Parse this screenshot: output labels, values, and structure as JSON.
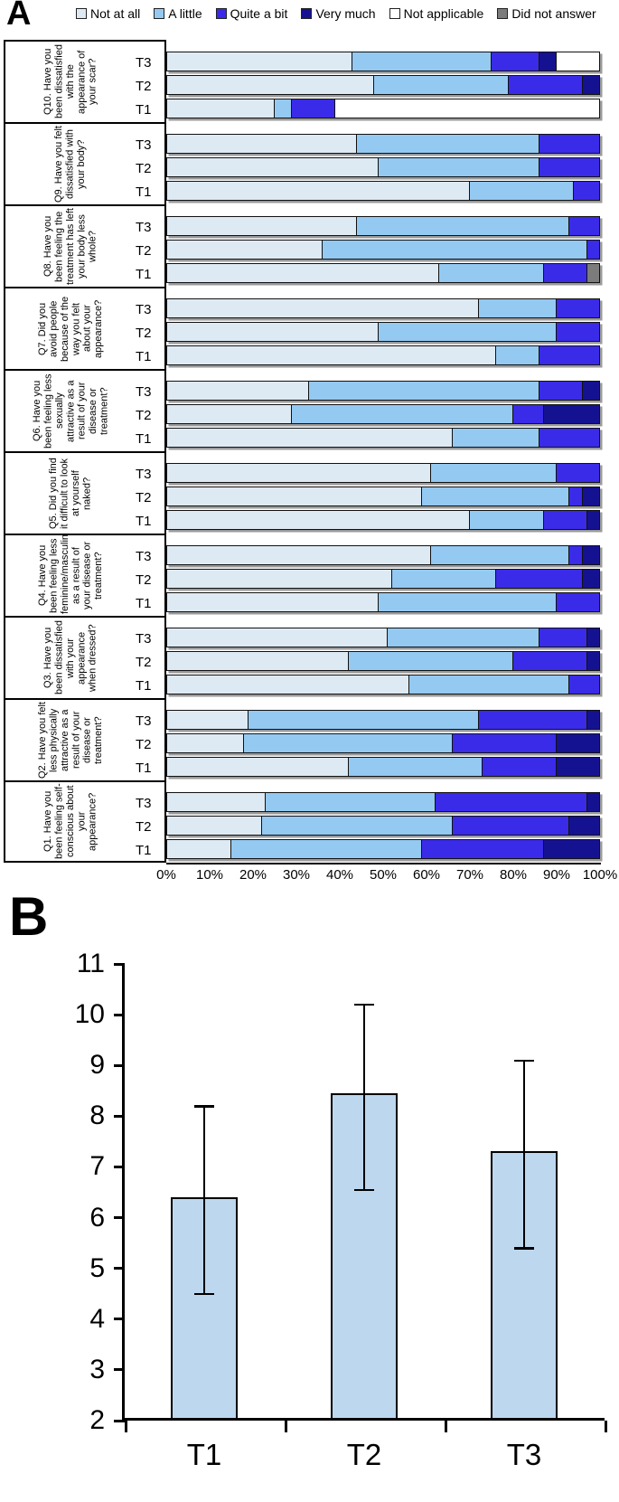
{
  "panel_a": {
    "letter": "A"
  },
  "panel_b": {
    "letter": "B"
  },
  "chart_data": [
    {
      "id": "A",
      "type": "bar",
      "variant": "horizontal-stacked-100-percent",
      "legend_position": "top",
      "categories": [
        "Not at all",
        "A little",
        "Quite a bit",
        "Very much",
        "Not applicable",
        "Did not answer"
      ],
      "colors": [
        "#DEEAF3",
        "#94C9F2",
        "#3A2BE8",
        "#151291",
        "#FFFFFF",
        "#7C7C7C"
      ],
      "xlim": [
        0,
        100
      ],
      "x_tick_labels": [
        "0%",
        "10%",
        "20%",
        "30%",
        "40%",
        "50%",
        "60%",
        "70%",
        "80%",
        "90%",
        "100%"
      ],
      "questions": [
        {
          "id": "Q10",
          "text": "Q10. Have you been dissatisfied with the appearance of your scar?",
          "rows": [
            {
              "label": "T3",
              "values": [
                43,
                32,
                11,
                4,
                10,
                0
              ]
            },
            {
              "label": "T2",
              "values": [
                48,
                31,
                17,
                4,
                0,
                0
              ]
            },
            {
              "label": "T1",
              "values": [
                25,
                4,
                10,
                0,
                61,
                0
              ]
            }
          ]
        },
        {
          "id": "Q9",
          "text": "Q9. Have you felt dissatisfied with your body?",
          "rows": [
            {
              "label": "T3",
              "values": [
                44,
                42,
                14,
                0,
                0,
                0
              ]
            },
            {
              "label": "T2",
              "values": [
                49,
                37,
                14,
                0,
                0,
                0
              ]
            },
            {
              "label": "T1",
              "values": [
                70,
                24,
                6,
                0,
                0,
                0
              ]
            }
          ]
        },
        {
          "id": "Q8",
          "text": "Q8. Have you been feeling the treatment has left your body less whole?",
          "rows": [
            {
              "label": "T3",
              "values": [
                44,
                49,
                7,
                0,
                0,
                0
              ]
            },
            {
              "label": "T2",
              "values": [
                36,
                61,
                3,
                0,
                0,
                0
              ]
            },
            {
              "label": "T1",
              "values": [
                63,
                24,
                10,
                0,
                0,
                3
              ]
            }
          ]
        },
        {
          "id": "Q7",
          "text": "Q7. Did you avoid people because of the way you felt about your appearance?",
          "rows": [
            {
              "label": "T3",
              "values": [
                72,
                18,
                10,
                0,
                0,
                0
              ]
            },
            {
              "label": "T2",
              "values": [
                49,
                41,
                10,
                0,
                0,
                0
              ]
            },
            {
              "label": "T1",
              "values": [
                76,
                10,
                14,
                0,
                0,
                0
              ]
            }
          ]
        },
        {
          "id": "Q6",
          "text": "Q6. Have you been feeling less sexually attractive as a result of your disease or treatment?",
          "rows": [
            {
              "label": "T3",
              "values": [
                33,
                53,
                10,
                4,
                0,
                0
              ]
            },
            {
              "label": "T2",
              "values": [
                29,
                51,
                7,
                13,
                0,
                0
              ]
            },
            {
              "label": "T1",
              "values": [
                66,
                20,
                14,
                0,
                0,
                0
              ]
            }
          ]
        },
        {
          "id": "Q5",
          "text": "Q5. Did you find it difficult to look at yourself naked?",
          "rows": [
            {
              "label": "T3",
              "values": [
                61,
                29,
                10,
                0,
                0,
                0
              ]
            },
            {
              "label": "T2",
              "values": [
                59,
                34,
                3,
                4,
                0,
                0
              ]
            },
            {
              "label": "T1",
              "values": [
                70,
                17,
                10,
                3,
                0,
                0
              ]
            }
          ]
        },
        {
          "id": "Q4",
          "text": "Q4. Have you been feeling less feminine/masculine as a result of your disease or treatment?",
          "rows": [
            {
              "label": "T3",
              "values": [
                61,
                32,
                3,
                4,
                0,
                0
              ]
            },
            {
              "label": "T2",
              "values": [
                52,
                24,
                20,
                4,
                0,
                0
              ]
            },
            {
              "label": "T1",
              "values": [
                49,
                41,
                10,
                0,
                0,
                0
              ]
            }
          ]
        },
        {
          "id": "Q3",
          "text": "Q3. Have you been dissatisfied with your appearance when dressed?",
          "rows": [
            {
              "label": "T3",
              "values": [
                51,
                35,
                11,
                3,
                0,
                0
              ]
            },
            {
              "label": "T2",
              "values": [
                42,
                38,
                17,
                3,
                0,
                0
              ]
            },
            {
              "label": "T1",
              "values": [
                56,
                37,
                7,
                0,
                0,
                0
              ]
            }
          ]
        },
        {
          "id": "Q2",
          "text": "Q2. Have you felt less physically attractive as a result of your disease or treatment?",
          "rows": [
            {
              "label": "T3",
              "values": [
                19,
                53,
                25,
                3,
                0,
                0
              ]
            },
            {
              "label": "T2",
              "values": [
                18,
                48,
                24,
                10,
                0,
                0
              ]
            },
            {
              "label": "T1",
              "values": [
                42,
                31,
                17,
                10,
                0,
                0
              ]
            }
          ]
        },
        {
          "id": "Q1",
          "text": "Q1. Have you been feeling self-conscious about your appearance?",
          "rows": [
            {
              "label": "T3",
              "values": [
                23,
                39,
                35,
                3,
                0,
                0
              ]
            },
            {
              "label": "T2",
              "values": [
                22,
                44,
                27,
                7,
                0,
                0
              ]
            },
            {
              "label": "T1",
              "values": [
                15,
                44,
                28,
                13,
                0,
                0
              ]
            }
          ]
        }
      ]
    },
    {
      "id": "B",
      "type": "bar",
      "categories": [
        "T1",
        "T2",
        "T3"
      ],
      "values": [
        6.35,
        8.4,
        7.25
      ],
      "error_low": [
        4.5,
        6.55,
        5.4
      ],
      "error_high": [
        8.2,
        10.2,
        9.1
      ],
      "ylim": [
        2,
        11
      ],
      "y_ticks": [
        2,
        3,
        4,
        5,
        6,
        7,
        8,
        9,
        10,
        11
      ],
      "bar_color": "#BDD7EE"
    }
  ]
}
